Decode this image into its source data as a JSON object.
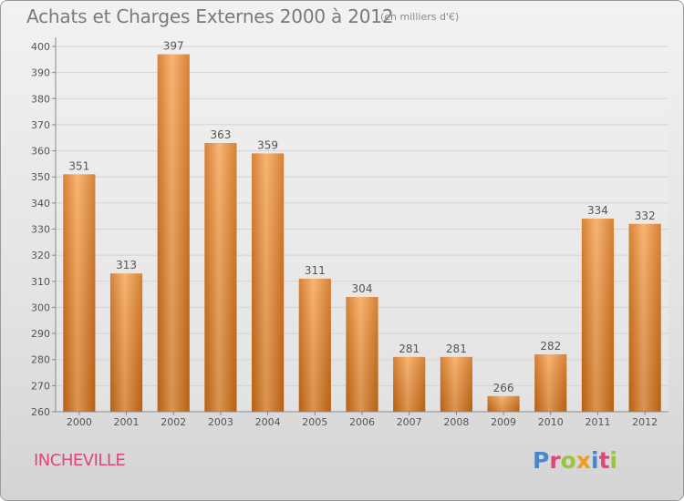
{
  "chart": {
    "title": "Achats et Charges Externes 2000 à 2012",
    "unit_note": "(en milliers d'€)"
  },
  "commune_name": "INCHEVILLE",
  "logo": {
    "text": "Proxiti",
    "letters": [
      {
        "char": "P",
        "color": "#4a86c8"
      },
      {
        "char": "r",
        "color": "#e0457b"
      },
      {
        "char": "o",
        "color": "#9cc43a"
      },
      {
        "char": "x",
        "color": "#f29a1c"
      },
      {
        "char": "i",
        "color": "#4a86c8"
      },
      {
        "char": "t",
        "color": "#e0457b"
      },
      {
        "char": "i",
        "color": "#9cc43a"
      }
    ]
  },
  "colors": {
    "bar_light": "#f7a85a",
    "bar_dark": "#cf6c16",
    "grid": "#d4d4d4",
    "text": "#555555"
  },
  "chart_data": {
    "type": "bar",
    "categories": [
      "2000",
      "2001",
      "2002",
      "2003",
      "2004",
      "2005",
      "2006",
      "2007",
      "2008",
      "2009",
      "2010",
      "2011",
      "2012"
    ],
    "values": [
      351,
      313,
      397,
      363,
      359,
      311,
      304,
      281,
      281,
      266,
      282,
      334,
      332
    ],
    "yticks": [
      260,
      270,
      280,
      290,
      300,
      310,
      320,
      330,
      340,
      350,
      360,
      370,
      380,
      390,
      400
    ],
    "ylim": [
      260,
      400
    ],
    "title": "Achats et Charges Externes 2000 à 2012",
    "xlabel": "",
    "ylabel": "",
    "grid": true,
    "data_labels": true
  }
}
